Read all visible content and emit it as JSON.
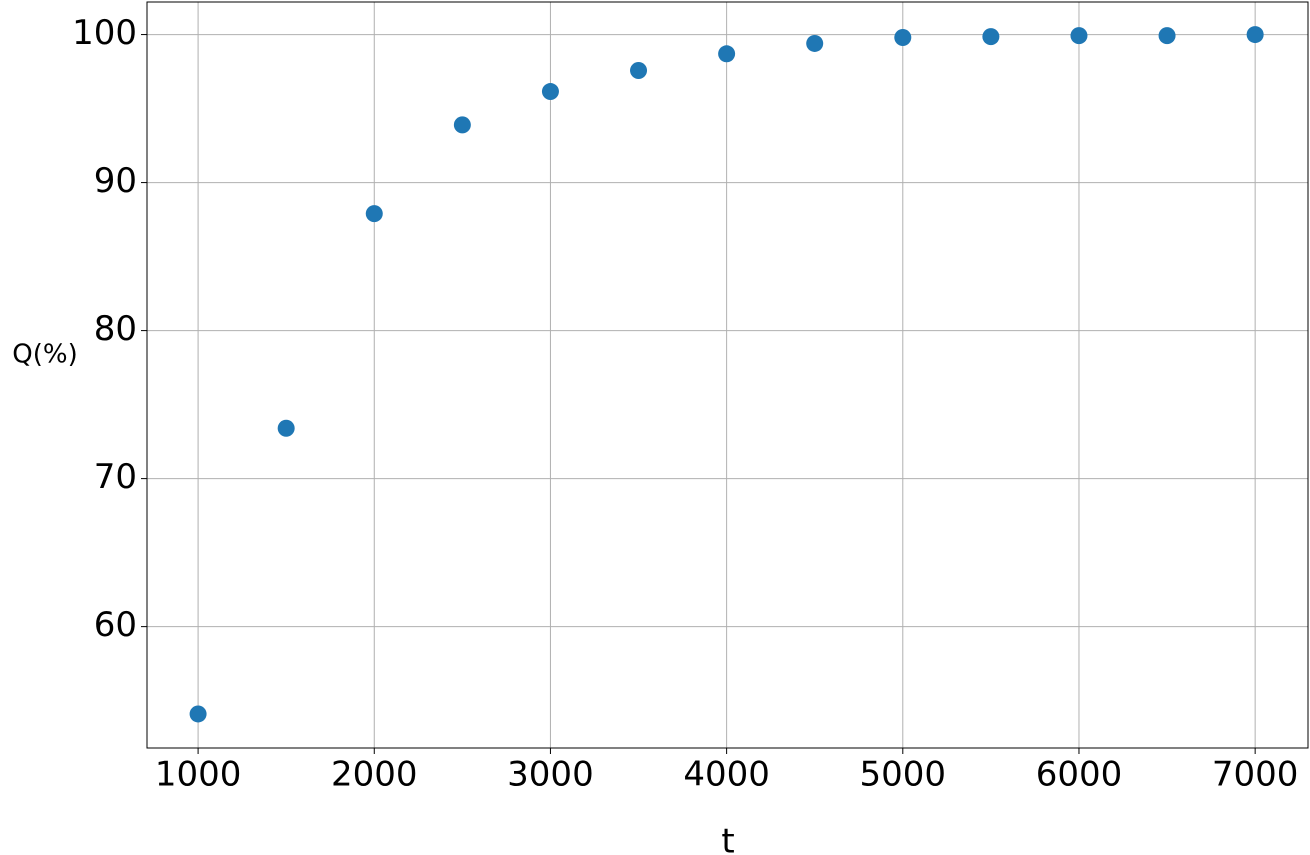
{
  "chart_data": {
    "type": "scatter",
    "x_label": "t",
    "y_label": "Q(%)",
    "series": [
      {
        "color": "#1f77b4",
        "x": [
          1000,
          1500,
          2000,
          2500,
          3000,
          3500,
          4000,
          4500,
          5000,
          5500,
          6000,
          6500,
          7000
        ],
        "values": [
          54.1,
          73.4,
          87.9,
          93.9,
          96.15,
          97.57,
          98.7,
          99.4,
          99.8,
          99.86,
          99.93,
          99.93,
          100
        ]
      }
    ],
    "xlim": [
      710,
      7300
    ],
    "ylim": [
      51.8,
      102.2
    ],
    "xticks": [
      1000,
      2000,
      3000,
      4000,
      5000,
      6000,
      7000
    ],
    "yticks": [
      60,
      70,
      80,
      90,
      100
    ],
    "grid": true
  }
}
